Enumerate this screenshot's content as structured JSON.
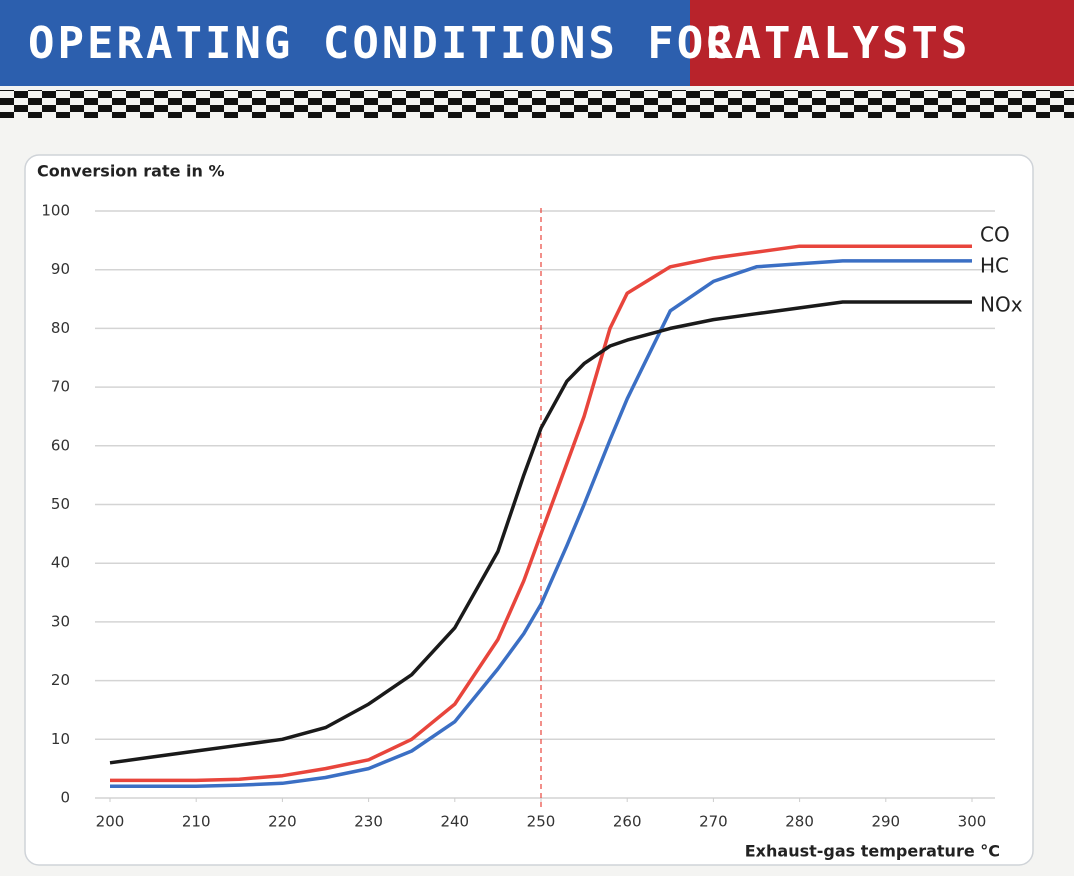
{
  "header": {
    "title": [
      "OPERATING CONDITIONS FOR",
      "CATALYSTS"
    ]
  },
  "chart_data": {
    "type": "line",
    "y_label": "Conversion rate in %",
    "x_label": "Exhaust-gas temperature °C",
    "xlim": [
      200,
      300
    ],
    "xticks": [
      200,
      210,
      220,
      230,
      240,
      250,
      260,
      270,
      280,
      290,
      300
    ],
    "ylim": [
      0,
      100
    ],
    "yticks": [
      0,
      10,
      20,
      30,
      40,
      50,
      60,
      70,
      80,
      90,
      100
    ],
    "grid": true,
    "reference_x": 250,
    "x": [
      200,
      205,
      210,
      215,
      220,
      225,
      230,
      235,
      240,
      245,
      248,
      250,
      253,
      255,
      258,
      260,
      265,
      270,
      275,
      280,
      285,
      290,
      300
    ],
    "series": [
      {
        "name": "CO",
        "color": "#e8453c",
        "values": [
          3,
          3,
          3,
          3.2,
          3.8,
          5,
          6.5,
          10,
          16,
          27,
          37,
          45,
          57,
          65,
          80,
          86,
          90.5,
          92,
          93,
          94,
          94,
          94,
          94
        ]
      },
      {
        "name": "HC",
        "color": "#3b6fc4",
        "values": [
          2,
          2,
          2,
          2.2,
          2.5,
          3.5,
          5,
          8,
          13,
          22,
          28,
          33,
          43,
          50,
          61,
          68,
          83,
          88,
          90.5,
          91,
          91.5,
          91.5,
          91.5
        ]
      },
      {
        "name": "NOx",
        "color": "#1a1a1a",
        "values": [
          6,
          7,
          8,
          9,
          10,
          12,
          16,
          21,
          29,
          42,
          55,
          63,
          71,
          74,
          77,
          78,
          80,
          81.5,
          82.5,
          83.5,
          84.5,
          84.5,
          84.5
        ]
      }
    ]
  }
}
